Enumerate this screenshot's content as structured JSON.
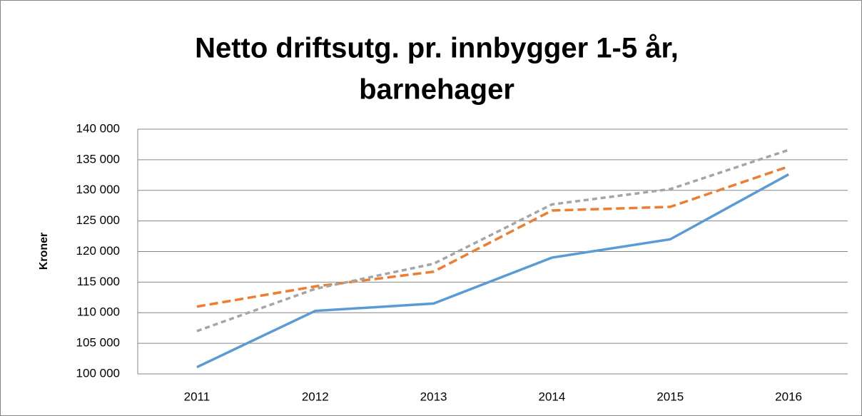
{
  "chart_data": {
    "type": "line",
    "title": [
      "Netto driftsutg. pr. innbygger 1-5 år,",
      "barnehager"
    ],
    "y_label": "Kroner",
    "categories": [
      "2011",
      "2012",
      "2013",
      "2014",
      "2015",
      "2016"
    ],
    "series": [
      {
        "color": "#5b9bd5",
        "dash": "solid",
        "values": [
          101100,
          110300,
          111500,
          119000,
          122000,
          132600
        ]
      },
      {
        "color": "#ed7d31",
        "dash": "dashed",
        "values": [
          111000,
          114300,
          116700,
          126700,
          127300,
          133900
        ]
      },
      {
        "color": "#a5a5a5",
        "dash": "dotted",
        "values": [
          107000,
          113900,
          118000,
          127700,
          130200,
          136600
        ]
      }
    ],
    "ylim": [
      100000,
      140000
    ],
    "yticks": [
      {
        "value": 100000,
        "label": "100 000"
      },
      {
        "value": 105000,
        "label": "105 000"
      },
      {
        "value": 110000,
        "label": "110 000"
      },
      {
        "value": 115000,
        "label": "115 000"
      },
      {
        "value": 120000,
        "label": "120 000"
      },
      {
        "value": 125000,
        "label": "125 000"
      },
      {
        "value": 130000,
        "label": "130 000"
      },
      {
        "value": 135000,
        "label": "135 000"
      },
      {
        "value": 140000,
        "label": "140 000"
      }
    ],
    "grid": true
  }
}
